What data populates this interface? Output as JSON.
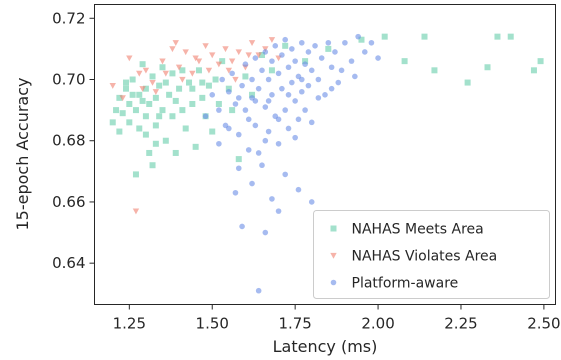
{
  "chart_data": {
    "type": "scatter",
    "xlabel": "Latency (ms)",
    "ylabel": "15-epoch Accuracy",
    "xlim": [
      1.145,
      2.535
    ],
    "ylim": [
      0.6265,
      0.7245
    ],
    "xticks": [
      1.25,
      1.5,
      1.75,
      2.0,
      2.25,
      2.5
    ],
    "xtick_labels": [
      "1.25",
      "1.50",
      "1.75",
      "2.00",
      "2.25",
      "2.50"
    ],
    "yticks": [
      0.64,
      0.66,
      0.68,
      0.7,
      0.72
    ],
    "ytick_labels": [
      "0.64",
      "0.66",
      "0.68",
      "0.70",
      "0.72"
    ],
    "grid": false,
    "legend_position": "bottom-right",
    "series": [
      {
        "name": "NAHAS Meets Area",
        "marker": "square",
        "color": "#66cdaa",
        "points": [
          [
            1.2,
            0.686
          ],
          [
            1.21,
            0.69
          ],
          [
            1.22,
            0.694
          ],
          [
            1.22,
            0.683
          ],
          [
            1.23,
            0.689
          ],
          [
            1.24,
            0.697
          ],
          [
            1.25,
            0.692
          ],
          [
            1.25,
            0.686
          ],
          [
            1.26,
            0.7
          ],
          [
            1.27,
            0.69
          ],
          [
            1.27,
            0.669
          ],
          [
            1.28,
            0.695
          ],
          [
            1.28,
            0.684
          ],
          [
            1.29,
            0.705
          ],
          [
            1.3,
            0.697
          ],
          [
            1.3,
            0.688
          ],
          [
            1.31,
            0.676
          ],
          [
            1.31,
            0.692
          ],
          [
            1.32,
            0.701
          ],
          [
            1.32,
            0.672
          ],
          [
            1.33,
            0.694
          ],
          [
            1.33,
            0.685
          ],
          [
            1.34,
            0.698
          ],
          [
            1.35,
            0.69
          ],
          [
            1.35,
            0.704
          ],
          [
            1.36,
            0.68
          ],
          [
            1.37,
            0.695
          ],
          [
            1.38,
            0.702
          ],
          [
            1.38,
            0.688
          ],
          [
            1.39,
            0.676
          ],
          [
            1.4,
            0.697
          ],
          [
            1.41,
            0.69
          ],
          [
            1.42,
            0.684
          ],
          [
            1.43,
            0.699
          ],
          [
            1.44,
            0.692
          ],
          [
            1.45,
            0.678
          ],
          [
            1.46,
            0.703
          ],
          [
            1.47,
            0.694
          ],
          [
            1.48,
            0.688
          ],
          [
            1.49,
            0.698
          ],
          [
            1.5,
            0.683
          ],
          [
            1.51,
            0.7
          ],
          [
            1.52,
            0.692
          ],
          [
            1.53,
            0.706
          ],
          [
            1.55,
            0.697
          ],
          [
            1.56,
            0.69
          ],
          [
            1.58,
            0.674
          ],
          [
            1.6,
            0.701
          ],
          [
            1.62,
            0.695
          ],
          [
            1.65,
            0.708
          ],
          [
            1.68,
            0.703
          ],
          [
            1.72,
            0.711
          ],
          [
            1.78,
            0.706
          ],
          [
            1.85,
            0.71
          ],
          [
            1.95,
            0.713
          ],
          [
            2.02,
            0.714
          ],
          [
            2.08,
            0.706
          ],
          [
            2.14,
            0.714
          ],
          [
            2.17,
            0.703
          ],
          [
            2.27,
            0.699
          ],
          [
            2.33,
            0.704
          ],
          [
            2.36,
            0.714
          ],
          [
            2.4,
            0.714
          ],
          [
            2.47,
            0.703
          ],
          [
            2.49,
            0.706
          ],
          [
            1.24,
            0.699
          ],
          [
            1.29,
            0.693
          ],
          [
            1.34,
            0.688
          ],
          [
            1.39,
            0.693
          ],
          [
            1.44,
            0.697
          ],
          [
            1.3,
            0.682
          ],
          [
            1.36,
            0.699
          ],
          [
            1.41,
            0.703
          ],
          [
            1.26,
            0.695
          ],
          [
            1.47,
            0.699
          ],
          [
            1.33,
            0.679
          ]
        ]
      },
      {
        "name": "NAHAS Violates Area",
        "marker": "triangle-down",
        "color": "#f08070",
        "points": [
          [
            1.2,
            0.698
          ],
          [
            1.23,
            0.694
          ],
          [
            1.25,
            0.707
          ],
          [
            1.27,
            0.657
          ],
          [
            1.28,
            0.702
          ],
          [
            1.3,
            0.703
          ],
          [
            1.32,
            0.699
          ],
          [
            1.35,
            0.706
          ],
          [
            1.38,
            0.71
          ],
          [
            1.4,
            0.704
          ],
          [
            1.42,
            0.709
          ],
          [
            1.44,
            0.702
          ],
          [
            1.46,
            0.706
          ],
          [
            1.48,
            0.711
          ],
          [
            1.5,
            0.708
          ],
          [
            1.52,
            0.705
          ],
          [
            1.54,
            0.71
          ],
          [
            1.56,
            0.706
          ],
          [
            1.58,
            0.709
          ],
          [
            1.6,
            0.704
          ],
          [
            1.62,
            0.712
          ],
          [
            1.64,
            0.708
          ],
          [
            1.66,
            0.71
          ],
          [
            1.68,
            0.713
          ],
          [
            1.7,
            0.707
          ],
          [
            1.36,
            0.702
          ],
          [
            1.45,
            0.707
          ],
          [
            1.55,
            0.703
          ],
          [
            1.33,
            0.696
          ],
          [
            1.41,
            0.7
          ],
          [
            1.49,
            0.703
          ],
          [
            1.57,
            0.7
          ],
          [
            1.29,
            0.697
          ],
          [
            1.39,
            0.712
          ],
          [
            1.61,
            0.708
          ]
        ]
      },
      {
        "name": "Platform-aware",
        "marker": "circle",
        "color": "#6a8ee6",
        "points": [
          [
            1.48,
            0.688
          ],
          [
            1.5,
            0.695
          ],
          [
            1.52,
            0.69
          ],
          [
            1.53,
            0.7
          ],
          [
            1.54,
            0.685
          ],
          [
            1.55,
            0.696
          ],
          [
            1.56,
            0.702
          ],
          [
            1.57,
            0.692
          ],
          [
            1.58,
            0.682
          ],
          [
            1.59,
            0.698
          ],
          [
            1.6,
            0.705
          ],
          [
            1.6,
            0.69
          ],
          [
            1.61,
            0.677
          ],
          [
            1.62,
            0.7
          ],
          [
            1.62,
            0.694
          ],
          [
            1.63,
            0.707
          ],
          [
            1.63,
            0.685
          ],
          [
            1.64,
            0.697
          ],
          [
            1.65,
            0.703
          ],
          [
            1.65,
            0.672
          ],
          [
            1.66,
            0.709
          ],
          [
            1.66,
            0.691
          ],
          [
            1.67,
            0.7
          ],
          [
            1.67,
            0.683
          ],
          [
            1.68,
            0.706
          ],
          [
            1.68,
            0.695
          ],
          [
            1.69,
            0.711
          ],
          [
            1.69,
            0.688
          ],
          [
            1.7,
            0.702
          ],
          [
            1.7,
            0.679
          ],
          [
            1.71,
            0.708
          ],
          [
            1.71,
            0.697
          ],
          [
            1.72,
            0.713
          ],
          [
            1.72,
            0.69
          ],
          [
            1.73,
            0.704
          ],
          [
            1.73,
            0.684
          ],
          [
            1.74,
            0.699
          ],
          [
            1.74,
            0.71
          ],
          [
            1.75,
            0.693
          ],
          [
            1.75,
            0.706
          ],
          [
            1.76,
            0.687
          ],
          [
            1.76,
            0.701
          ],
          [
            1.77,
            0.712
          ],
          [
            1.77,
            0.696
          ],
          [
            1.78,
            0.705
          ],
          [
            1.78,
            0.69
          ],
          [
            1.79,
            0.709
          ],
          [
            1.79,
            0.698
          ],
          [
            1.8,
            0.703
          ],
          [
            1.8,
            0.686
          ],
          [
            1.81,
            0.711
          ],
          [
            1.82,
            0.7
          ],
          [
            1.83,
            0.707
          ],
          [
            1.84,
            0.695
          ],
          [
            1.85,
            0.712
          ],
          [
            1.86,
            0.704
          ],
          [
            1.87,
            0.709
          ],
          [
            1.88,
            0.699
          ],
          [
            1.9,
            0.712
          ],
          [
            1.92,
            0.706
          ],
          [
            1.94,
            0.714
          ],
          [
            1.96,
            0.709
          ],
          [
            1.98,
            0.712
          ],
          [
            2.0,
            0.707
          ],
          [
            1.57,
            0.663
          ],
          [
            1.59,
            0.652
          ],
          [
            1.62,
            0.666
          ],
          [
            1.64,
            0.631
          ],
          [
            1.66,
            0.65
          ],
          [
            1.68,
            0.661
          ],
          [
            1.7,
            0.657
          ],
          [
            1.72,
            0.669
          ],
          [
            1.58,
            0.671
          ],
          [
            1.76,
            0.664
          ],
          [
            1.8,
            0.66
          ],
          [
            1.66,
            0.68
          ],
          [
            1.64,
            0.676
          ],
          [
            1.7,
            0.687
          ],
          [
            1.75,
            0.681
          ],
          [
            1.52,
            0.679
          ],
          [
            1.55,
            0.684
          ],
          [
            1.58,
            0.694
          ],
          [
            1.61,
            0.687
          ],
          [
            1.63,
            0.693
          ],
          [
            1.67,
            0.693
          ],
          [
            1.73,
            0.695
          ],
          [
            1.77,
            0.7
          ],
          [
            1.82,
            0.694
          ],
          [
            1.86,
            0.697
          ],
          [
            1.89,
            0.703
          ],
          [
            1.93,
            0.701
          ]
        ]
      }
    ]
  }
}
